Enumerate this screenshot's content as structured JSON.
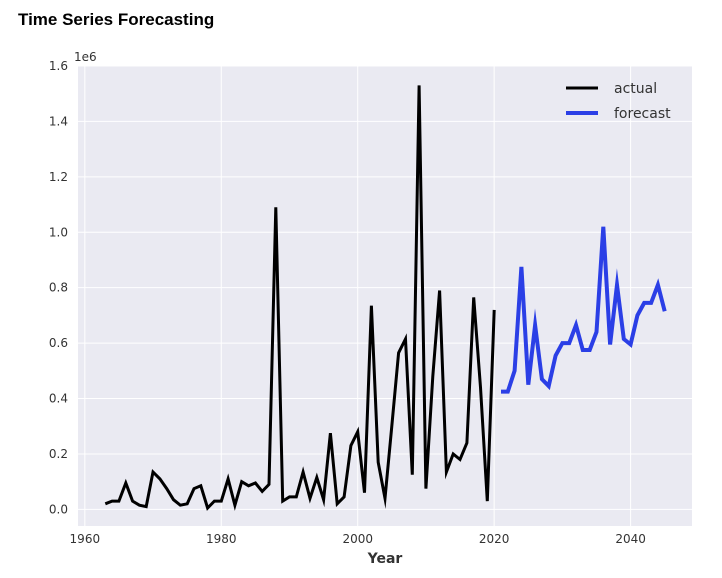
{
  "page": {
    "title": "Time Series Forecasting"
  },
  "chart_data": {
    "type": "line",
    "title": "",
    "xlabel": "Year",
    "ylabel": "",
    "y_multiplier_label": "1e6",
    "xlim": [
      1959,
      2049
    ],
    "ylim": [
      -0.06,
      1.6
    ],
    "x_ticks": [
      1960,
      1980,
      2000,
      2020,
      2040
    ],
    "y_ticks": [
      0.0,
      0.2,
      0.4,
      0.6,
      0.8,
      1.0,
      1.2,
      1.4,
      1.6
    ],
    "grid": true,
    "legend_position": "top-right",
    "series": [
      {
        "name": "actual",
        "color": "#000000",
        "x": [
          1963,
          1964,
          1965,
          1966,
          1967,
          1968,
          1969,
          1970,
          1971,
          1972,
          1973,
          1974,
          1975,
          1976,
          1977,
          1978,
          1979,
          1980,
          1981,
          1982,
          1983,
          1984,
          1985,
          1986,
          1987,
          1988,
          1989,
          1990,
          1991,
          1992,
          1993,
          1994,
          1995,
          1996,
          1997,
          1998,
          1999,
          2000,
          2001,
          2002,
          2003,
          2004,
          2005,
          2006,
          2007,
          2008,
          2009,
          2010,
          2011,
          2012,
          2013,
          2014,
          2015,
          2016,
          2017,
          2018,
          2019,
          2020
        ],
        "y": [
          0.02,
          0.03,
          0.03,
          0.095,
          0.03,
          0.015,
          0.01,
          0.135,
          0.11,
          0.075,
          0.035,
          0.015,
          0.02,
          0.075,
          0.085,
          0.005,
          0.03,
          0.03,
          0.11,
          0.015,
          0.1,
          0.085,
          0.095,
          0.065,
          0.09,
          1.09,
          0.03,
          0.045,
          0.045,
          0.135,
          0.04,
          0.115,
          0.035,
          0.275,
          0.02,
          0.045,
          0.23,
          0.28,
          0.06,
          0.735,
          0.17,
          0.04,
          0.3,
          0.565,
          0.615,
          0.125,
          1.53,
          0.075,
          0.48,
          0.79,
          0.135,
          0.2,
          0.18,
          0.24,
          0.765,
          0.44,
          0.03,
          0.72
        ]
      },
      {
        "name": "forecast",
        "color": "#2b3fe6",
        "x": [
          2021,
          2022,
          2023,
          2024,
          2025,
          2026,
          2027,
          2028,
          2029,
          2030,
          2031,
          2032,
          2033,
          2034,
          2035,
          2036,
          2037,
          2038,
          2039,
          2040,
          2041,
          2042,
          2043,
          2044,
          2045
        ],
        "y": [
          0.425,
          0.425,
          0.5,
          0.875,
          0.45,
          0.665,
          0.47,
          0.445,
          0.555,
          0.6,
          0.6,
          0.665,
          0.575,
          0.575,
          0.64,
          1.02,
          0.595,
          0.81,
          0.615,
          0.595,
          0.7,
          0.745,
          0.745,
          0.81,
          0.715
        ]
      }
    ]
  }
}
